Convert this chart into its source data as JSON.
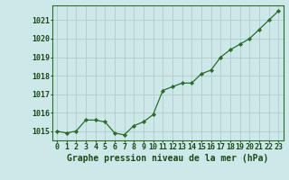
{
  "x": [
    0,
    1,
    2,
    3,
    4,
    5,
    6,
    7,
    8,
    9,
    10,
    11,
    12,
    13,
    14,
    15,
    16,
    17,
    18,
    19,
    20,
    21,
    22,
    23
  ],
  "y": [
    1015.0,
    1014.9,
    1015.0,
    1015.6,
    1015.6,
    1015.5,
    1014.9,
    1014.8,
    1015.3,
    1015.5,
    1015.9,
    1017.2,
    1017.4,
    1017.6,
    1017.6,
    1018.1,
    1018.3,
    1019.0,
    1019.4,
    1019.7,
    1020.0,
    1020.5,
    1021.0,
    1021.5
  ],
  "line_color": "#2d6a2d",
  "marker_color": "#2d6a2d",
  "bg_color": "#cce8e8",
  "grid_color": "#b0cccc",
  "xlabel": "Graphe pression niveau de la mer (hPa)",
  "xlabel_color": "#1a4a1a",
  "tick_color": "#1a4a1a",
  "ylim": [
    1014.5,
    1021.8
  ],
  "xlim": [
    -0.5,
    23.5
  ],
  "xtick_labels": [
    "0",
    "1",
    "2",
    "3",
    "4",
    "5",
    "6",
    "7",
    "8",
    "9",
    "10",
    "11",
    "12",
    "13",
    "14",
    "15",
    "16",
    "17",
    "18",
    "19",
    "20",
    "21",
    "22",
    "23"
  ],
  "ytick_vals": [
    1015,
    1016,
    1017,
    1018,
    1019,
    1020,
    1021
  ],
  "axis_fontsize": 6,
  "label_fontsize": 7
}
